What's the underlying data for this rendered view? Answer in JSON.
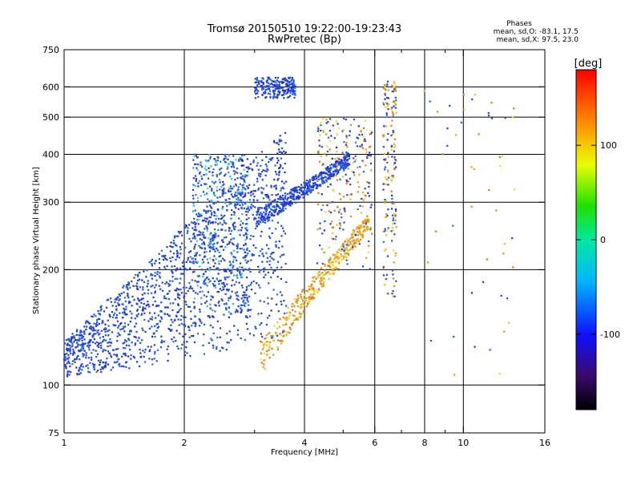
{
  "chart_data": {
    "type": "scatter",
    "title": "Tromsø 20150510 19:22:00-19:23:43",
    "subtitle": "RwPretec (Bp)",
    "xlabel": "Frequency [MHz]",
    "ylabel": "Stationary phase Virtual Height [km]",
    "x_scale": "log",
    "y_scale": "log",
    "xlim": [
      1,
      16
    ],
    "ylim": [
      75,
      750
    ],
    "x_ticks": [
      1,
      2,
      4,
      6,
      8,
      10,
      16
    ],
    "x_tick_labels": [
      "1",
      "2",
      "4",
      "6",
      "8",
      "10",
      "16"
    ],
    "x_grid": [
      2,
      4,
      6,
      8,
      10
    ],
    "x_minor": [
      3,
      5,
      7,
      9
    ],
    "y_ticks": [
      75,
      100,
      200,
      300,
      400,
      500,
      600,
      750
    ],
    "y_tick_labels": [
      "75",
      "100",
      "200",
      "300",
      "400",
      "500",
      "600",
      "750"
    ],
    "y_grid": [
      100,
      200,
      300,
      400,
      500,
      600
    ],
    "grid": true,
    "stats": {
      "heading": "Phases",
      "line_o": "mean, sd,O: -83.1, 17.5",
      "line_x": "mean, sd,X:  97.5, 23.0"
    },
    "colorbar": {
      "label": "[deg]",
      "range": [
        -180,
        180
      ],
      "ticks": [
        100,
        0,
        -100
      ],
      "tick_labels": [
        "100",
        "0",
        "-100"
      ]
    },
    "point_colors": {
      "o_mode": "#1f3fd6",
      "x_mode": "#e8a020",
      "mid": "#22c0d8"
    }
  }
}
